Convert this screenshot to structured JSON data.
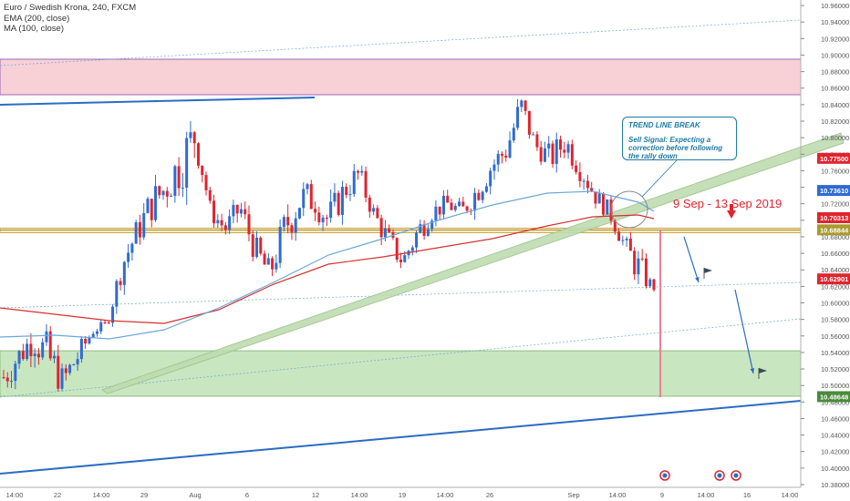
{
  "header": {
    "symbol_line": "Euro / Swedish Krona, 240, FXCM",
    "indicators": [
      "EMA (200, close)",
      "MA (100, close)"
    ]
  },
  "annotation": {
    "title": "TREND LINE BREAK",
    "body": "Sell Signal: Expecting a correction before following the rally down"
  },
  "date_range_label": "9 Sep - 13 Sep 2019",
  "colors": {
    "up": "#2f6bd1",
    "down": "#e0242e",
    "ema": "#d63030",
    "ma": "#6ba8d9",
    "support_zone": "#c8e6c0",
    "resistance_zone": "#f7d1d6",
    "trendline": "#2a6cc4"
  },
  "chart_data": {
    "type": "candlestick",
    "ylim": [
      10.38,
      10.97
    ],
    "y_ticks": [
      "10.96000",
      "10.94000",
      "10.92000",
      "10.90000",
      "10.88000",
      "10.86000",
      "10.84000",
      "10.82000",
      "10.80000",
      "10.78000",
      "10.76000",
      "10.74000",
      "10.72000",
      "10.70000",
      "10.68000",
      "10.66000",
      "10.64000",
      "10.62000",
      "10.60000",
      "10.58000",
      "10.56000",
      "10.54000",
      "10.52000",
      "10.50000",
      "10.48000",
      "10.46000",
      "10.44000",
      "10.42000",
      "10.40000",
      "10.38000"
    ],
    "x_ticks": [
      "14:00",
      "22",
      "14:00",
      "29",
      "Aug",
      "6",
      "12",
      "14:00",
      "19",
      "14:00",
      "26",
      "Sep",
      "14:00",
      "9",
      "14:00",
      "16",
      "14:00"
    ],
    "price_labels": [
      {
        "value": 10.775,
        "text": "10.77500",
        "color": "#e0242e"
      },
      {
        "value": 10.7361,
        "text": "10.73610",
        "color": "#2f6bd1"
      },
      {
        "value": 10.70313,
        "text": "10.70313",
        "color": "#e0242e"
      },
      {
        "value": 10.68844,
        "text": "10.68844",
        "color": "#a89a2e"
      },
      {
        "value": 10.62901,
        "text": "10.62901",
        "color": "#e0242e"
      },
      {
        "value": 10.48648,
        "text": "10.48648",
        "color": "#4a8a3a"
      }
    ],
    "zones": [
      {
        "name": "resistance",
        "y1": 10.852,
        "y2": 10.895
      },
      {
        "name": "support",
        "y1": 10.487,
        "y2": 10.542
      }
    ],
    "ohlc_keypoints": [
      [
        10.53,
        10.49
      ],
      [
        10.55,
        10.52
      ],
      [
        10.575,
        10.54
      ],
      [
        10.56,
        10.51
      ],
      [
        10.52,
        10.49
      ],
      [
        10.55,
        10.52
      ],
      [
        10.57,
        10.56
      ],
      [
        10.58,
        10.57
      ],
      [
        10.66,
        10.63
      ],
      [
        10.7,
        10.67
      ],
      [
        10.74,
        10.7
      ],
      [
        10.76,
        10.72
      ],
      [
        10.8,
        10.74
      ],
      [
        10.83,
        10.78
      ],
      [
        10.72,
        10.7
      ],
      [
        10.7,
        10.68
      ],
      [
        10.73,
        10.7
      ],
      [
        10.68,
        10.65
      ],
      [
        10.65,
        10.62
      ],
      [
        10.71,
        10.67
      ],
      [
        10.75,
        10.7
      ],
      [
        10.74,
        10.71
      ],
      [
        10.72,
        10.68
      ],
      [
        10.75,
        10.72
      ],
      [
        10.77,
        10.74
      ],
      [
        10.72,
        10.7
      ],
      [
        10.69,
        10.66
      ],
      [
        10.66,
        10.64
      ],
      [
        10.7,
        10.67
      ],
      [
        10.72,
        10.7
      ],
      [
        10.73,
        10.71
      ],
      [
        10.72,
        10.7
      ],
      [
        10.75,
        10.72
      ],
      [
        10.78,
        10.75
      ],
      [
        10.8,
        10.77
      ],
      [
        10.855,
        10.82
      ],
      [
        10.8,
        10.78
      ],
      [
        10.79,
        10.76
      ],
      [
        10.81,
        10.78
      ],
      [
        10.78,
        10.75
      ],
      [
        10.74,
        10.72
      ],
      [
        10.72,
        10.7
      ],
      [
        10.68,
        10.66
      ],
      [
        10.66,
        10.62
      ],
      [
        10.62,
        10.615
      ]
    ]
  }
}
